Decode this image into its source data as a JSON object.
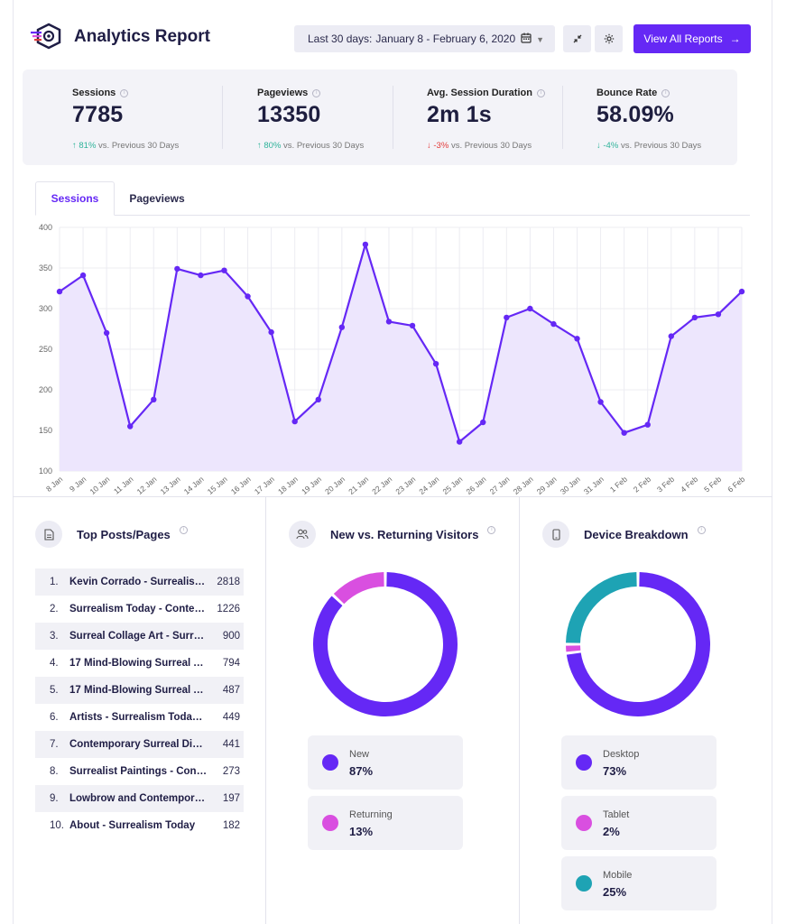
{
  "header": {
    "title": "Analytics Report",
    "date_prefix": "Last 30 days:",
    "date_range": "January 8 - February 6, 2020",
    "view_all": "View All Reports",
    "arrow": "→"
  },
  "stats": [
    {
      "label": "Sessions",
      "value": "7785",
      "change": "81%",
      "dir": "up",
      "suffix": "vs. Previous 30 Days"
    },
    {
      "label": "Pageviews",
      "value": "13350",
      "change": "80%",
      "dir": "up",
      "suffix": "vs. Previous 30 Days"
    },
    {
      "label": "Avg. Session Duration",
      "value": "2m 1s",
      "change": "-3%",
      "dir": "down",
      "suffix": "vs. Previous 30 Days"
    },
    {
      "label": "Bounce Rate",
      "value": "58.09%",
      "change": "-4%",
      "dir": "down-good",
      "suffix": "vs. Previous 30 Days"
    }
  ],
  "tabs": {
    "active": "Sessions",
    "idle": "Pageviews"
  },
  "chart_data": {
    "type": "area",
    "categories": [
      "8 Jan",
      "9 Jan",
      "10 Jan",
      "11 Jan",
      "12 Jan",
      "13 Jan",
      "14 Jan",
      "15 Jan",
      "16 Jan",
      "17 Jan",
      "18 Jan",
      "19 Jan",
      "20 Jan",
      "21 Jan",
      "22 Jan",
      "23 Jan",
      "24 Jan",
      "25 Jan",
      "26 Jan",
      "27 Jan",
      "28 Jan",
      "29 Jan",
      "30 Jan",
      "31 Jan",
      "1 Feb",
      "2 Feb",
      "3 Feb",
      "4 Feb",
      "5 Feb",
      "6 Feb"
    ],
    "series": [
      {
        "name": "Sessions",
        "values": [
          321,
          341,
          270,
          155,
          188,
          349,
          341,
          347,
          315,
          271,
          161,
          188,
          277,
          379,
          284,
          279,
          232,
          136,
          160,
          289,
          300,
          281,
          263,
          185,
          147,
          157,
          266,
          289,
          293,
          321
        ]
      }
    ],
    "ylim": [
      100,
      400
    ],
    "yticks": [
      100,
      150,
      200,
      250,
      300,
      350,
      400
    ],
    "color": "#6528f5",
    "fill": "#ede6fd"
  },
  "top_posts": {
    "title": "Top Posts/Pages",
    "items": [
      {
        "n": "1.",
        "title": "Kevin Corrado - Surrealis…",
        "count": "2818"
      },
      {
        "n": "2.",
        "title": "Surrealism Today - Conte…",
        "count": "1226"
      },
      {
        "n": "3.",
        "title": "Surreal Collage Art - Surre…",
        "count": "900"
      },
      {
        "n": "4.",
        "title": "17 Mind-Blowing Surreal A…",
        "count": "794"
      },
      {
        "n": "5.",
        "title": "17 Mind-Blowing Surreal A…",
        "count": "487"
      },
      {
        "n": "6.",
        "title": "Artists - Surrealism Today -…",
        "count": "449"
      },
      {
        "n": "7.",
        "title": "Contemporary Surreal Digit…",
        "count": "441"
      },
      {
        "n": "8.",
        "title": "Surrealist Paintings - Cont…",
        "count": "273"
      },
      {
        "n": "9.",
        "title": "Lowbrow and Contempora…",
        "count": "197"
      },
      {
        "n": "10.",
        "title": "About - Surrealism Today",
        "count": "182"
      }
    ]
  },
  "visitors": {
    "title": "New vs. Returning Visitors",
    "items": [
      {
        "label": "New",
        "value": "87%",
        "pct": 87,
        "color": "#6528f5"
      },
      {
        "label": "Returning",
        "value": "13%",
        "pct": 13,
        "color": "#d94fe0"
      }
    ]
  },
  "devices": {
    "title": "Device Breakdown",
    "items": [
      {
        "label": "Desktop",
        "value": "73%",
        "pct": 73,
        "color": "#6528f5"
      },
      {
        "label": "Tablet",
        "value": "2%",
        "pct": 2,
        "color": "#d94fe0"
      },
      {
        "label": "Mobile",
        "value": "25%",
        "pct": 25,
        "color": "#1ea3b4"
      }
    ]
  }
}
